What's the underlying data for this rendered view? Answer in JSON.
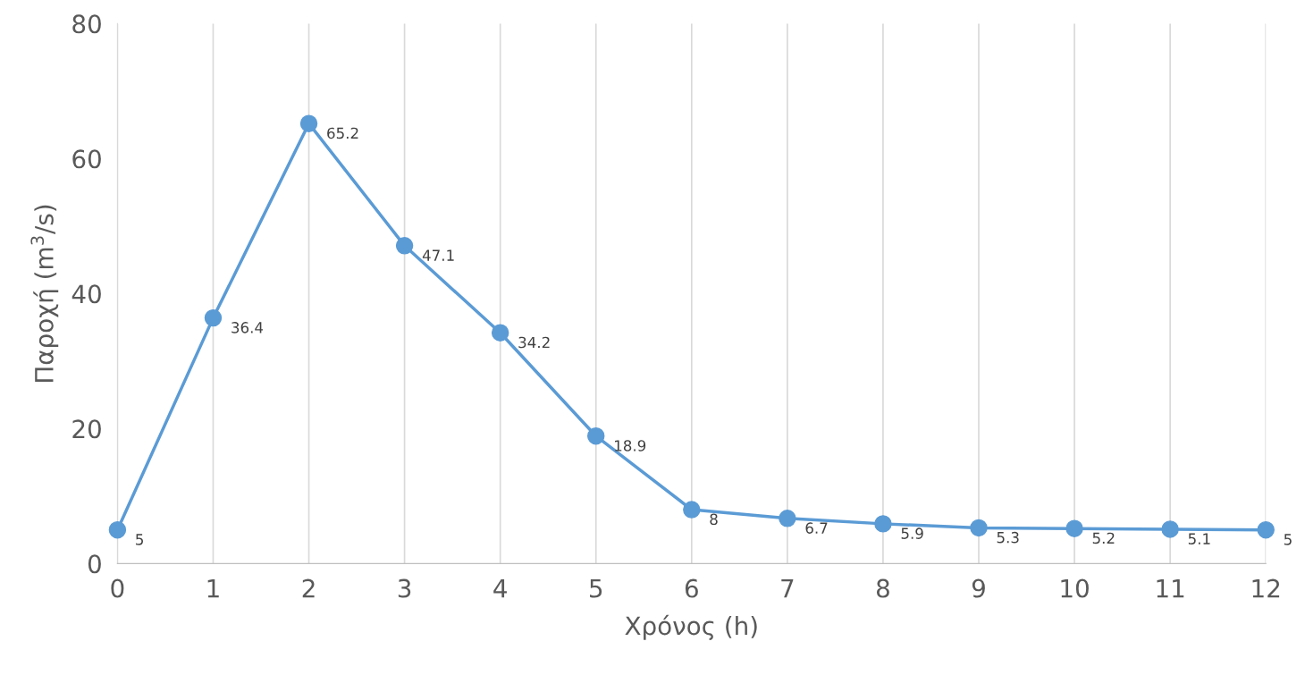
{
  "chart_data": {
    "type": "line",
    "xlabel": "Χρόνος (h)",
    "ylabel": "Παροχή (m$^{3}$/s)",
    "x": [
      0,
      1,
      2,
      3,
      4,
      5,
      6,
      7,
      8,
      9,
      10,
      11,
      12
    ],
    "series": [
      {
        "color": "#5b9bd5",
        "values": [
          5,
          36.4,
          65.2,
          47.1,
          34.2,
          18.9,
          8,
          6.7,
          5.9,
          5.3,
          5.2,
          5.1,
          5
        ]
      }
    ],
    "xlim": [
      0,
      12
    ],
    "xticks": [
      0,
      1,
      2,
      3,
      4,
      5,
      6,
      7,
      8,
      9,
      10,
      11,
      12
    ],
    "ylim": [
      0,
      80
    ],
    "yticks": [
      0,
      20,
      40,
      60,
      80
    ],
    "grid": "x",
    "marker": "circle",
    "line_style": "solid",
    "data_labels": true
  }
}
